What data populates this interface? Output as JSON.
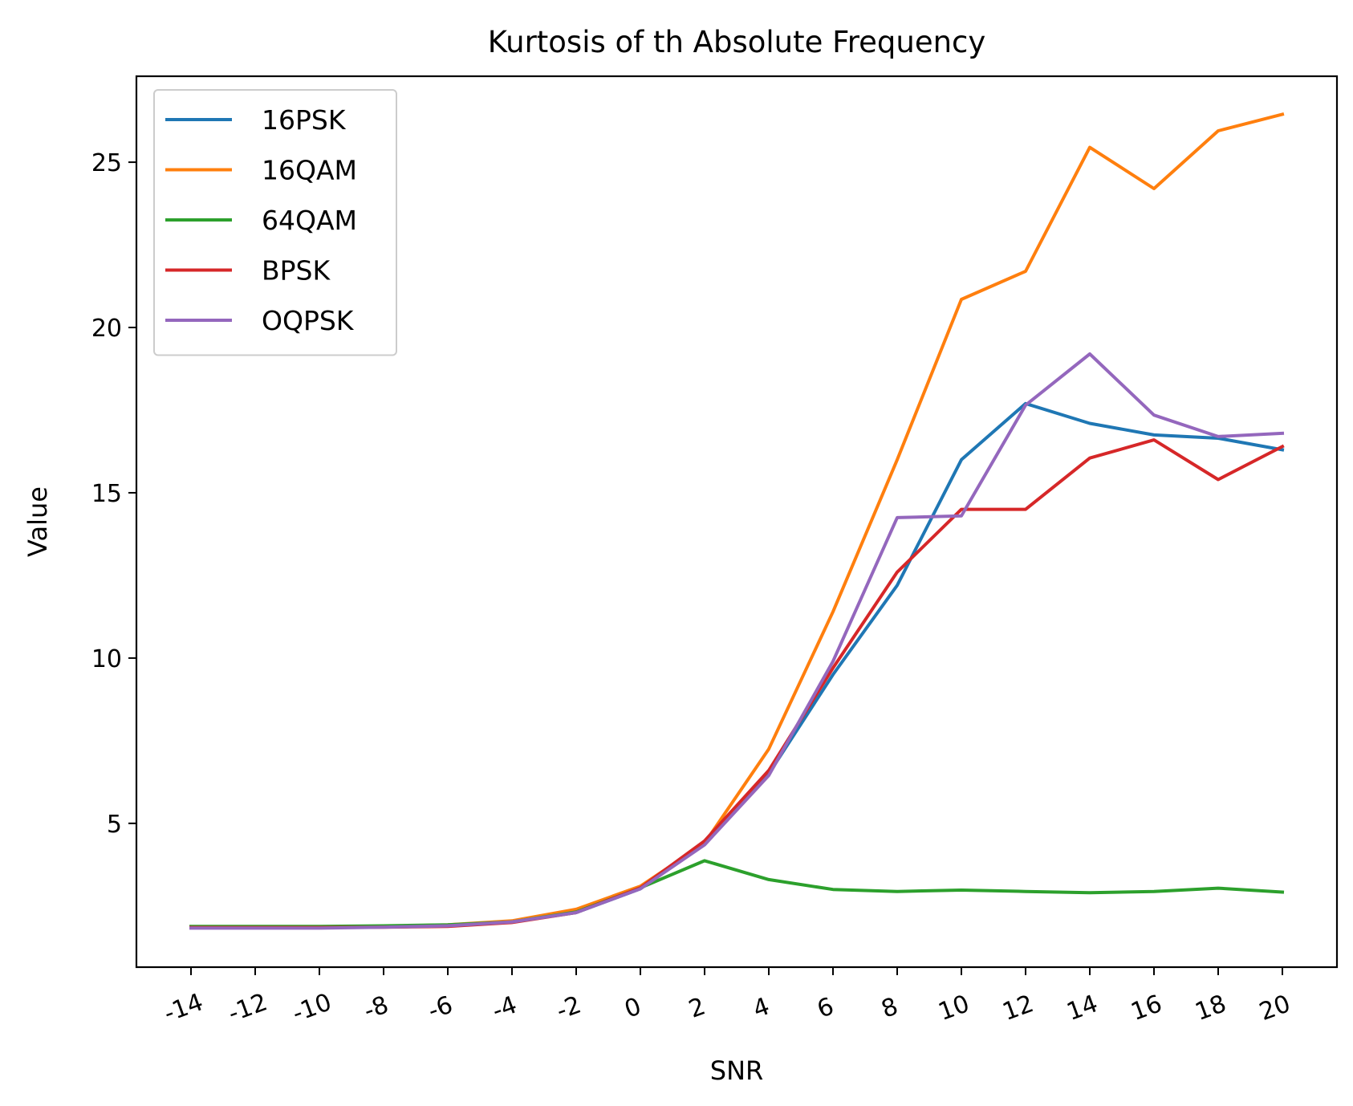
{
  "chart_data": {
    "type": "line",
    "title": "Kurtosis of th Absolute Frequency",
    "xlabel": "SNR",
    "ylabel": "Value",
    "x": [
      -14,
      -12,
      -10,
      -8,
      -6,
      -4,
      -2,
      0,
      2,
      4,
      6,
      8,
      10,
      12,
      14,
      16,
      18,
      20
    ],
    "x_tick_labels": [
      "-14",
      "-12",
      "-10",
      "-8",
      "-6",
      "-4",
      "-2",
      "0",
      "2",
      "4",
      "6",
      "8",
      "10",
      "12",
      "14",
      "16",
      "18",
      "20"
    ],
    "y_ticks": [
      5,
      10,
      15,
      20,
      25
    ],
    "y_tick_labels": [
      "5",
      "10",
      "15",
      "20",
      "25"
    ],
    "xlim": [
      -15.7,
      21.7
    ],
    "ylim": [
      0.65,
      27.6
    ],
    "grid": false,
    "legend_position": "top-left",
    "series": [
      {
        "name": "16PSK",
        "color": "#1f77b4",
        "values": [
          1.85,
          1.85,
          1.85,
          1.87,
          1.92,
          2.02,
          2.3,
          3.02,
          4.4,
          6.5,
          9.5,
          12.2,
          16.0,
          17.7,
          17.1,
          16.75,
          16.65,
          16.3
        ]
      },
      {
        "name": "16QAM",
        "color": "#ff7f0e",
        "values": [
          1.85,
          1.86,
          1.86,
          1.88,
          1.93,
          2.05,
          2.4,
          3.1,
          4.4,
          7.25,
          11.4,
          16.0,
          20.85,
          21.7,
          25.45,
          24.2,
          25.95,
          26.45
        ]
      },
      {
        "name": "64QAM",
        "color": "#2ca02c",
        "values": [
          1.88,
          1.88,
          1.88,
          1.9,
          1.93,
          2.02,
          2.32,
          3.05,
          3.87,
          3.3,
          3.0,
          2.94,
          2.98,
          2.94,
          2.9,
          2.94,
          3.04,
          2.92
        ]
      },
      {
        "name": "BPSK",
        "color": "#d62728",
        "values": [
          1.85,
          1.85,
          1.85,
          1.86,
          1.88,
          2.0,
          2.3,
          3.05,
          4.47,
          6.6,
          9.7,
          12.6,
          14.5,
          14.5,
          16.05,
          16.6,
          15.4,
          16.4
        ]
      },
      {
        "name": "OQPSK",
        "color": "#9467bd",
        "values": [
          1.83,
          1.83,
          1.83,
          1.86,
          1.9,
          2.02,
          2.3,
          3.02,
          4.35,
          6.45,
          9.9,
          14.25,
          14.3,
          17.65,
          19.2,
          17.35,
          16.7,
          16.8
        ]
      }
    ]
  }
}
